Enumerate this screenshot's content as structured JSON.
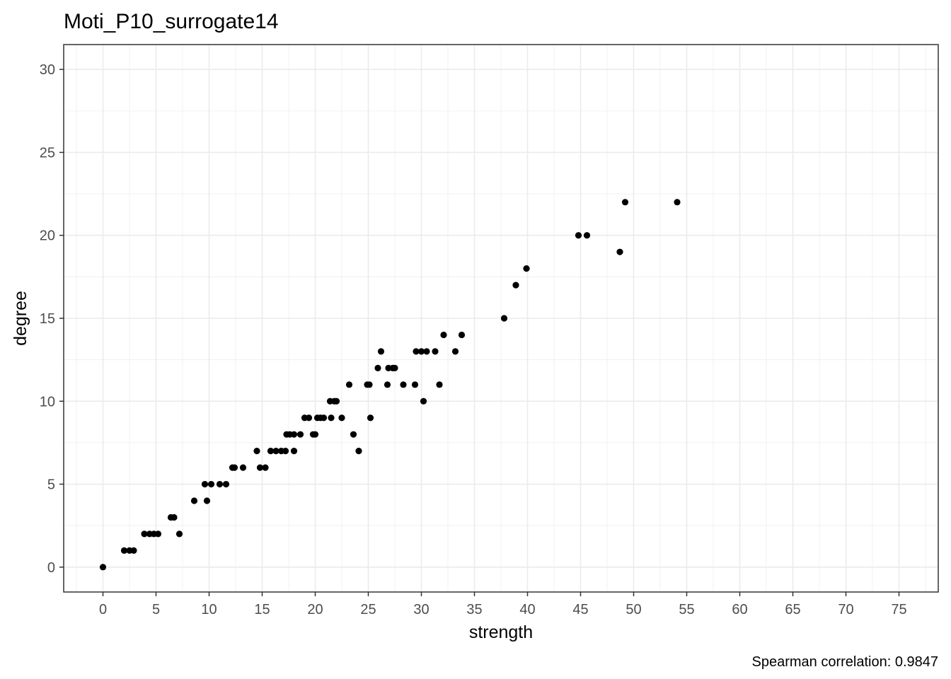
{
  "chart_data": {
    "type": "scatter",
    "title": "Moti_P10_surrogate14",
    "xlabel": "strength",
    "ylabel": "degree",
    "caption": "Spearman correlation: 0.9847",
    "xlim": [
      -3.7,
      78.7
    ],
    "ylim": [
      -1.5,
      31.5
    ],
    "xticks": [
      0,
      5,
      10,
      15,
      20,
      25,
      30,
      35,
      40,
      45,
      50,
      55,
      60,
      65,
      70,
      75
    ],
    "yticks": [
      0,
      5,
      10,
      15,
      20,
      25,
      30
    ],
    "grid": true,
    "point_color": "#000000",
    "points": [
      {
        "x": 0,
        "y": 0
      },
      {
        "x": 2.0,
        "y": 1
      },
      {
        "x": 2.5,
        "y": 1
      },
      {
        "x": 2.9,
        "y": 1
      },
      {
        "x": 3.9,
        "y": 2
      },
      {
        "x": 4.4,
        "y": 2
      },
      {
        "x": 4.8,
        "y": 2
      },
      {
        "x": 5.2,
        "y": 2
      },
      {
        "x": 7.2,
        "y": 2
      },
      {
        "x": 6.4,
        "y": 3
      },
      {
        "x": 6.7,
        "y": 3
      },
      {
        "x": 8.6,
        "y": 4
      },
      {
        "x": 9.8,
        "y": 4
      },
      {
        "x": 9.6,
        "y": 5
      },
      {
        "x": 10.2,
        "y": 5
      },
      {
        "x": 11.0,
        "y": 5
      },
      {
        "x": 11.6,
        "y": 5
      },
      {
        "x": 12.2,
        "y": 6
      },
      {
        "x": 12.4,
        "y": 6
      },
      {
        "x": 13.2,
        "y": 6
      },
      {
        "x": 14.8,
        "y": 6
      },
      {
        "x": 15.3,
        "y": 6
      },
      {
        "x": 14.5,
        "y": 7
      },
      {
        "x": 15.8,
        "y": 7
      },
      {
        "x": 16.3,
        "y": 7
      },
      {
        "x": 16.8,
        "y": 7
      },
      {
        "x": 17.2,
        "y": 7
      },
      {
        "x": 18.0,
        "y": 7
      },
      {
        "x": 24.1,
        "y": 7
      },
      {
        "x": 17.3,
        "y": 8
      },
      {
        "x": 17.6,
        "y": 8
      },
      {
        "x": 18.0,
        "y": 8
      },
      {
        "x": 18.6,
        "y": 8
      },
      {
        "x": 19.8,
        "y": 8
      },
      {
        "x": 20.0,
        "y": 8
      },
      {
        "x": 23.6,
        "y": 8
      },
      {
        "x": 19.0,
        "y": 9
      },
      {
        "x": 19.4,
        "y": 9
      },
      {
        "x": 20.2,
        "y": 9
      },
      {
        "x": 20.5,
        "y": 9
      },
      {
        "x": 20.8,
        "y": 9
      },
      {
        "x": 21.5,
        "y": 9
      },
      {
        "x": 22.5,
        "y": 9
      },
      {
        "x": 25.2,
        "y": 9
      },
      {
        "x": 21.4,
        "y": 10
      },
      {
        "x": 21.8,
        "y": 10
      },
      {
        "x": 22.0,
        "y": 10
      },
      {
        "x": 30.2,
        "y": 10
      },
      {
        "x": 23.2,
        "y": 11
      },
      {
        "x": 24.9,
        "y": 11
      },
      {
        "x": 25.1,
        "y": 11
      },
      {
        "x": 26.8,
        "y": 11
      },
      {
        "x": 28.3,
        "y": 11
      },
      {
        "x": 29.4,
        "y": 11
      },
      {
        "x": 31.7,
        "y": 11
      },
      {
        "x": 25.9,
        "y": 12
      },
      {
        "x": 26.9,
        "y": 12
      },
      {
        "x": 27.3,
        "y": 12
      },
      {
        "x": 27.5,
        "y": 12
      },
      {
        "x": 26.2,
        "y": 13
      },
      {
        "x": 29.5,
        "y": 13
      },
      {
        "x": 30.0,
        "y": 13
      },
      {
        "x": 30.5,
        "y": 13
      },
      {
        "x": 31.3,
        "y": 13
      },
      {
        "x": 33.2,
        "y": 13
      },
      {
        "x": 32.1,
        "y": 14
      },
      {
        "x": 33.8,
        "y": 14
      },
      {
        "x": 37.8,
        "y": 15
      },
      {
        "x": 38.9,
        "y": 17
      },
      {
        "x": 39.9,
        "y": 18
      },
      {
        "x": 48.7,
        "y": 19
      },
      {
        "x": 44.8,
        "y": 20
      },
      {
        "x": 45.6,
        "y": 20
      },
      {
        "x": 49.2,
        "y": 22
      },
      {
        "x": 54.1,
        "y": 22
      }
    ]
  }
}
